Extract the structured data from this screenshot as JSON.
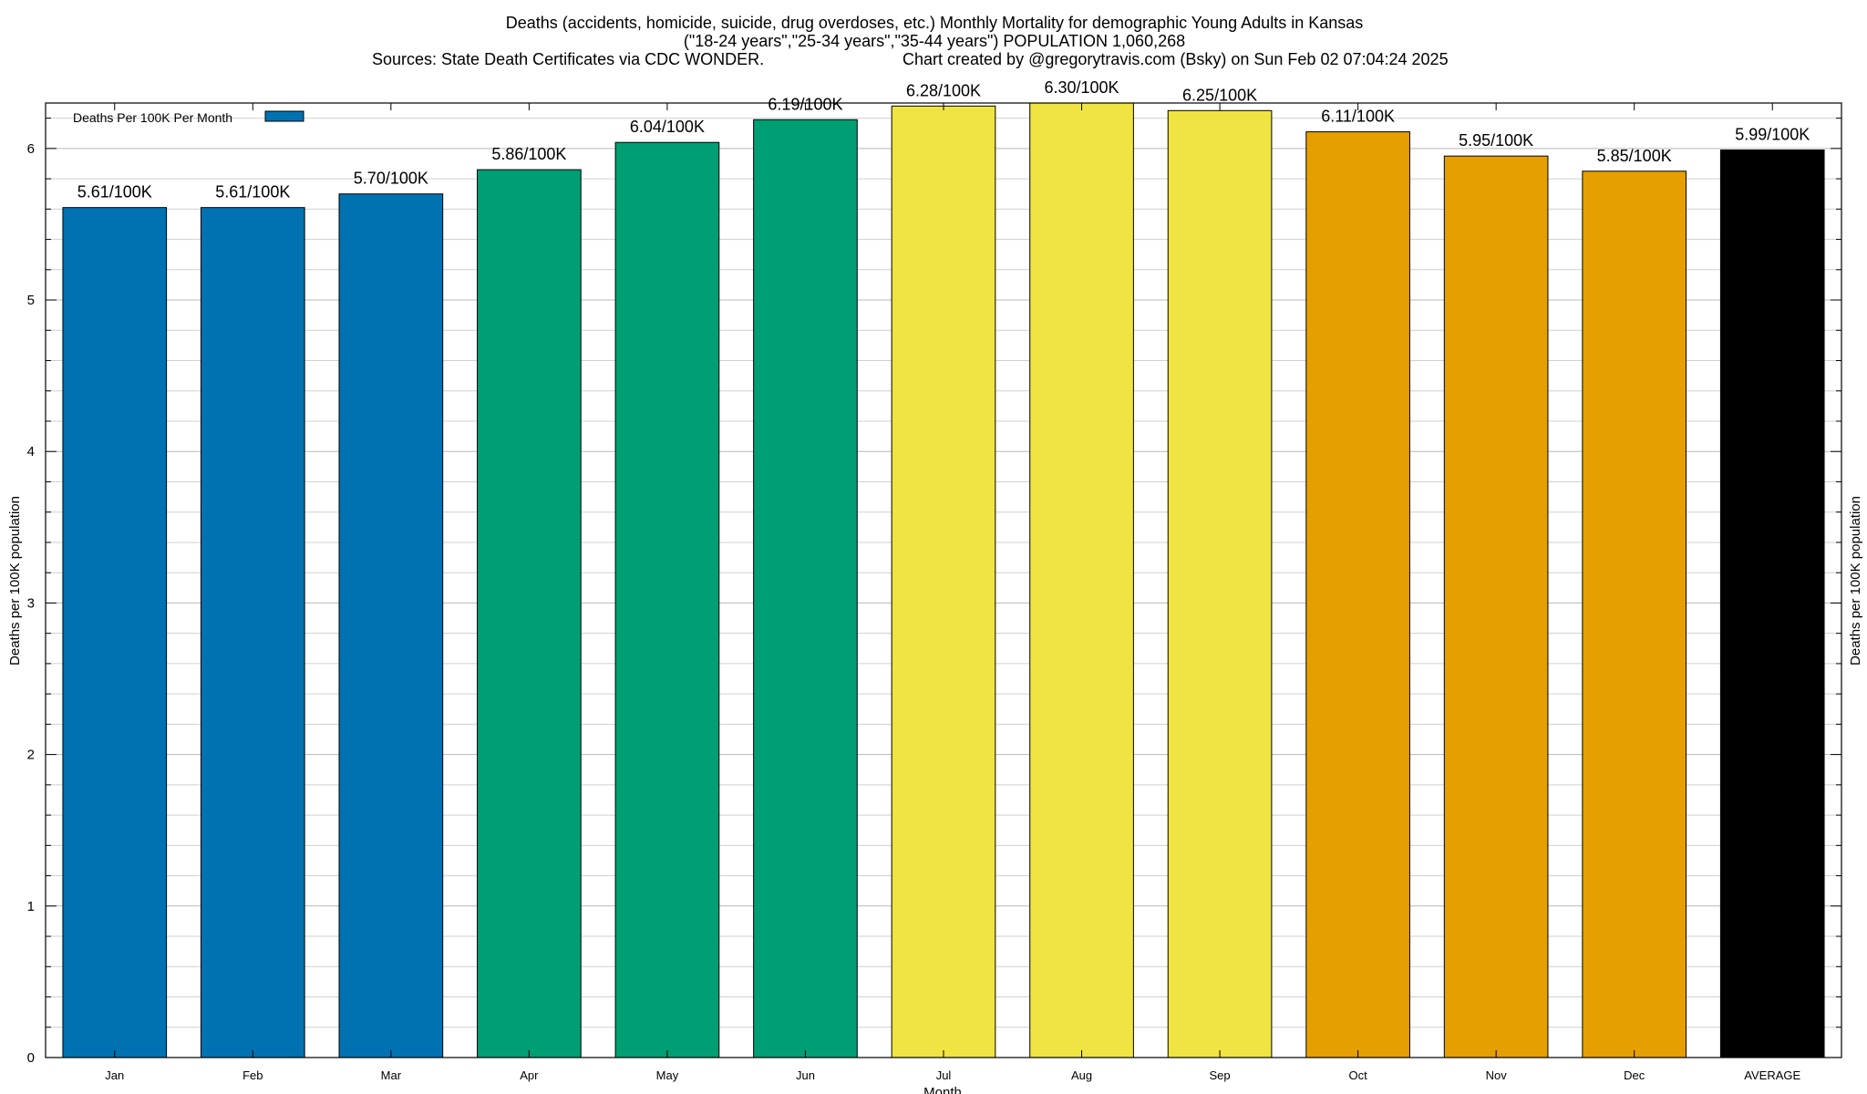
{
  "chart_data": {
    "type": "bar",
    "title": "Deaths (accidents, homicide, suicide, drug overdoses, etc.) Monthly Mortality for demographic Young Adults in Kansas",
    "subtitle": "(\"18-24 years\",\"25-34 years\",\"35-44 years\") POPULATION 1,060,268",
    "sources": "Sources: State Death Certificates via CDC WONDER.",
    "credit": "Chart created by @gregorytravis.com (Bsky) on Sun Feb 02 07:04:24 2025",
    "xlabel": "Month",
    "ylabel": "Deaths per 100K population",
    "y2label": "Deaths per 100K population",
    "ylim": [
      0,
      6.3
    ],
    "yticks": [
      0,
      1,
      2,
      3,
      4,
      5,
      6
    ],
    "grid": true,
    "legend": {
      "label": "Deaths Per 100K Per Month",
      "color": "#0072b2",
      "position": "top-left"
    },
    "categories": [
      "Jan",
      "Feb",
      "Mar",
      "Apr",
      "May",
      "Jun",
      "Jul",
      "Aug",
      "Sep",
      "Oct",
      "Nov",
      "Dec",
      "AVERAGE"
    ],
    "values": [
      5.61,
      5.61,
      5.7,
      5.86,
      6.04,
      6.19,
      6.28,
      6.3,
      6.25,
      6.11,
      5.95,
      5.85,
      5.99
    ],
    "data_labels": [
      "5.61/100K",
      "5.61/100K",
      "5.70/100K",
      "5.86/100K",
      "6.04/100K",
      "6.19/100K",
      "6.28/100K",
      "6.30/100K",
      "6.25/100K",
      "6.11/100K",
      "5.95/100K",
      "5.85/100K",
      "5.99/100K"
    ],
    "colors": [
      "#0072b2",
      "#0072b2",
      "#0072b2",
      "#009e73",
      "#009e73",
      "#009e73",
      "#f0e442",
      "#f0e442",
      "#f0e442",
      "#e69f00",
      "#e69f00",
      "#e69f00",
      "#000000"
    ]
  }
}
